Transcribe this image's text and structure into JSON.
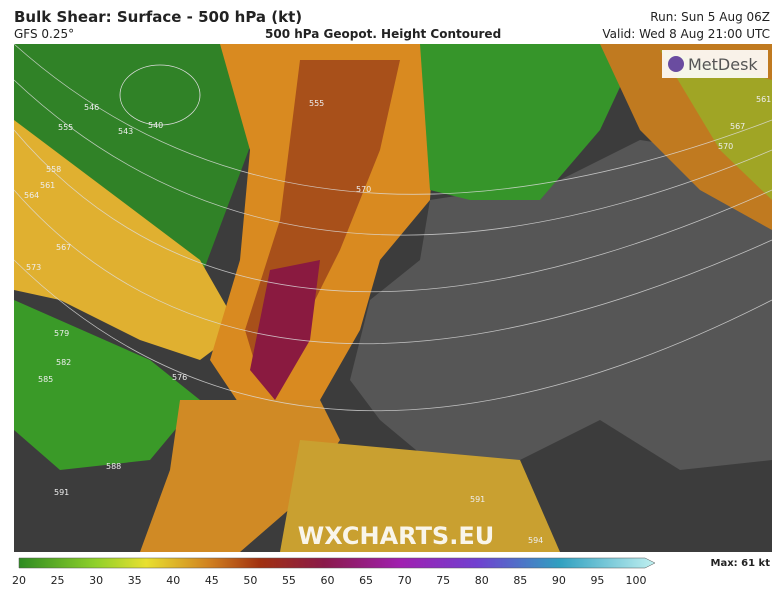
{
  "header": {
    "title": "Bulk Shear: Surface - 500 hPa (kt)",
    "model": "GFS 0.25°",
    "subtitle": "500 hPa Geopot. Height Contoured",
    "run": "Run: Sun 5 Aug 06Z",
    "valid": "Valid: Wed 8 Aug 21:00 UTC"
  },
  "map": {
    "logo": "MetDesk",
    "watermark": "WXCHARTS.EU",
    "contour_labels": [
      "546",
      "543",
      "540",
      "555",
      "558",
      "561",
      "564",
      "567",
      "573",
      "579",
      "582",
      "585",
      "576",
      "588",
      "591",
      "591",
      "594",
      "555",
      "570",
      "561",
      "567",
      "570"
    ]
  },
  "legend": {
    "ticks": [
      20,
      25,
      30,
      35,
      40,
      45,
      50,
      55,
      60,
      65,
      70,
      75,
      80,
      85,
      90,
      95,
      100
    ],
    "max": "Max: 61 kt"
  }
}
